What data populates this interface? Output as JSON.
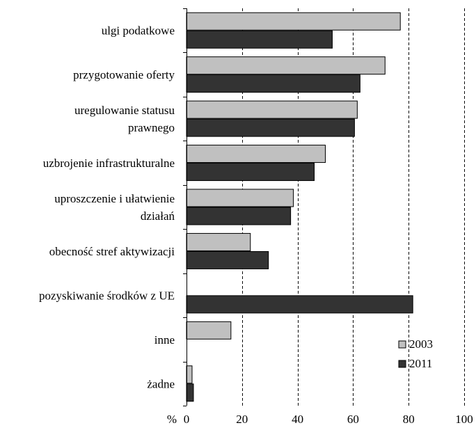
{
  "chart_data": {
    "type": "bar",
    "orientation": "horizontal",
    "title": "",
    "xlabel": "",
    "ylabel": "",
    "axis_unit": "%",
    "categories": [
      [
        "ulgi podatkowe"
      ],
      [
        "przygotowanie oferty"
      ],
      [
        "uregulowanie statusu",
        "prawnego"
      ],
      [
        "uzbrojenie infrastrukturalne"
      ],
      [
        "uproszczenie i ułatwienie",
        "działań"
      ],
      [
        "obecność stref aktywizacji"
      ],
      [
        "pozyskiwanie środków z UE"
      ],
      [
        "inne"
      ],
      [
        "żadne"
      ]
    ],
    "series": [
      {
        "name": "2003",
        "color": "#c0c0c0",
        "values": [
          77,
          71.5,
          61.5,
          50,
          38.5,
          23,
          null,
          16,
          2
        ]
      },
      {
        "name": "2011",
        "color": "#333333",
        "values": [
          52.5,
          62.5,
          60.5,
          46,
          37.5,
          29.5,
          81.5,
          null,
          2.5
        ]
      }
    ],
    "xlim": [
      0,
      100
    ],
    "xticks": [
      0,
      20,
      40,
      60,
      80,
      100
    ],
    "grid": "vertical-dashed",
    "legend_position": "bottom-right"
  }
}
